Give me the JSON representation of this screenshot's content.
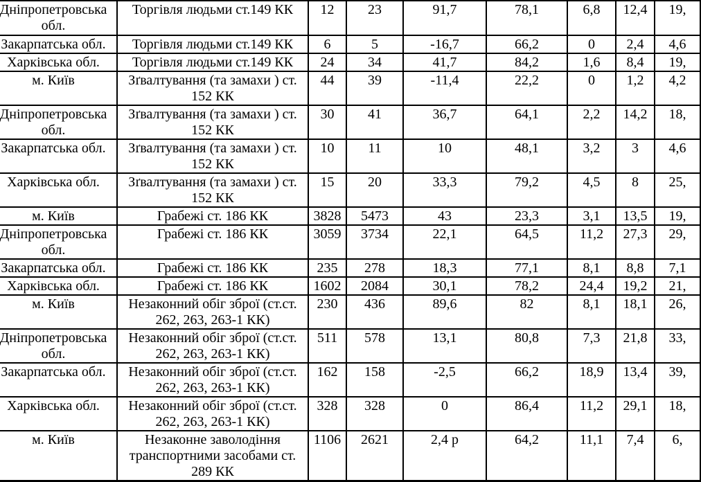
{
  "table": {
    "description": "crime-statistics-by-region",
    "rows": [
      {
        "region": "Дніпропетровська обл.",
        "crime": "Торгівля людьми ст.149 КК",
        "values": [
          "12",
          "23",
          "91,7",
          "78,1",
          "6,8",
          "12,4",
          "19,"
        ]
      },
      {
        "region": "Закарпатська обл.",
        "crime": "Торгівля людьми ст.149 КК",
        "values": [
          "6",
          "5",
          "-16,7",
          "66,2",
          "0",
          "2,4",
          "4,6"
        ]
      },
      {
        "region": "Харківська обл.",
        "crime": "Торгівля людьми ст.149 КК",
        "values": [
          "24",
          "34",
          "41,7",
          "84,2",
          "1,6",
          "8,4",
          "19,"
        ]
      },
      {
        "region": "м. Київ",
        "crime": "Зґвалтування (та замахи ) ст. 152 КК",
        "values": [
          "44",
          "39",
          "-11,4",
          "22,2",
          "0",
          "1,2",
          "4,2"
        ]
      },
      {
        "region": "Дніпропетровська обл.",
        "crime": "Зґвалтування (та замахи ) ст. 152 КК",
        "values": [
          "30",
          "41",
          "36,7",
          "64,1",
          "2,2",
          "14,2",
          "18,"
        ]
      },
      {
        "region": "Закарпатська обл.",
        "crime": "Зґвалтування (та замахи ) ст. 152 КК",
        "values": [
          "10",
          "11",
          "10",
          "48,1",
          "3,2",
          "3",
          "4,6"
        ]
      },
      {
        "region": "Харківська обл.",
        "crime": "Зґвалтування (та замахи ) ст. 152 КК",
        "values": [
          "15",
          "20",
          "33,3",
          "79,2",
          "4,5",
          "8",
          "25,"
        ]
      },
      {
        "region": "м. Київ",
        "crime": "Грабежі ст. 186 КК",
        "values": [
          "3828",
          "5473",
          "43",
          "23,3",
          "3,1",
          "13,5",
          "19,"
        ]
      },
      {
        "region": "Дніпропетровська обл.",
        "crime": "Грабежі ст. 186 КК",
        "values": [
          "3059",
          "3734",
          "22,1",
          "64,5",
          "11,2",
          "27,3",
          "29,"
        ]
      },
      {
        "region": "Закарпатська обл.",
        "crime": "Грабежі ст. 186 КК",
        "values": [
          "235",
          "278",
          "18,3",
          "77,1",
          "8,1",
          "8,8",
          "7,1"
        ]
      },
      {
        "region": "Харківська обл.",
        "crime": "Грабежі ст. 186 КК",
        "values": [
          "1602",
          "2084",
          "30,1",
          "78,2",
          "24,4",
          "19,2",
          "21,"
        ]
      },
      {
        "region": "м. Київ",
        "crime": "Незаконний обіг зброї (ст.ст. 262, 263, 263-1 КК)",
        "values": [
          "230",
          "436",
          "89,6",
          "82",
          "8,1",
          "18,1",
          "26,"
        ]
      },
      {
        "region": "Дніпропетровська обл.",
        "crime": "Незаконний обіг зброї (ст.ст. 262, 263, 263-1 КК)",
        "values": [
          "511",
          "578",
          "13,1",
          "80,8",
          "7,3",
          "21,8",
          "33,"
        ]
      },
      {
        "region": "Закарпатська обл.",
        "crime": "Незаконний обіг зброї (ст.ст. 262, 263, 263-1 КК)",
        "values": [
          "162",
          "158",
          "-2,5",
          "66,2",
          "18,9",
          "13,4",
          "39,"
        ]
      },
      {
        "region": "Харківська обл.",
        "crime": "Незаконний обіг зброї (ст.ст. 262, 263, 263-1 КК)",
        "values": [
          "328",
          "328",
          "0",
          "86,4",
          "11,2",
          "29,1",
          "18,"
        ]
      },
      {
        "region": "м. Київ",
        "crime": "Незаконне заволодіння транспортними засобами ст. 289 КК",
        "values": [
          "1106",
          "2621",
          "2,4 р",
          "64,2",
          "11,1",
          "7,4",
          "6,"
        ]
      }
    ],
    "text_color": "#000000",
    "border_color": "#000000",
    "background_color": "#ffffff"
  }
}
